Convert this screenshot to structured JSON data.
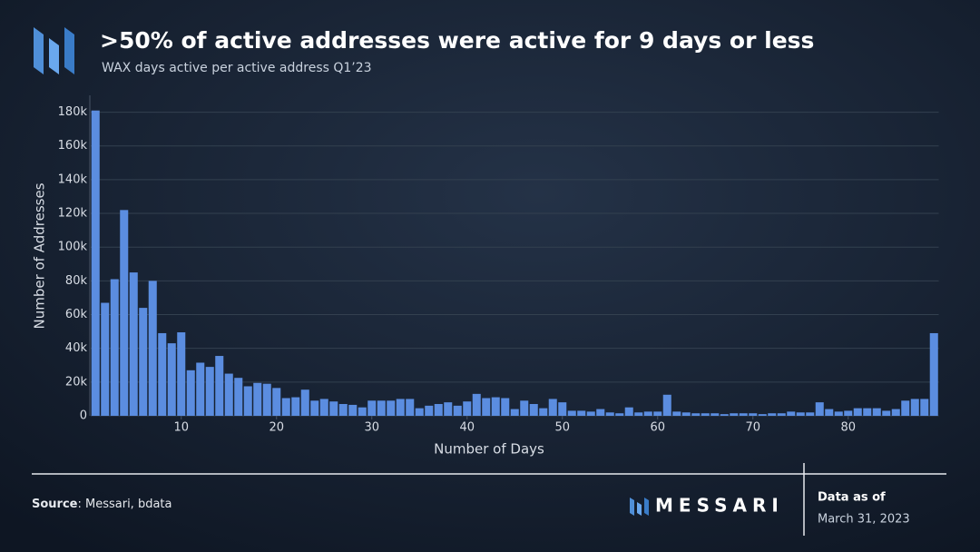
{
  "chart_data": {
    "type": "bar",
    "title": ">50% of active addresses were active for 9 days or less",
    "subtitle": "WAX days active per active address Q1’23",
    "x_label": "Number of Days",
    "y_label": "Number of Addresses",
    "color": "#5b8de0",
    "grid": true,
    "x": [
      1,
      2,
      3,
      4,
      5,
      6,
      7,
      8,
      9,
      10,
      11,
      12,
      13,
      14,
      15,
      16,
      17,
      18,
      19,
      20,
      21,
      22,
      23,
      24,
      25,
      26,
      27,
      28,
      29,
      30,
      31,
      32,
      33,
      34,
      35,
      36,
      37,
      38,
      39,
      40,
      41,
      42,
      43,
      44,
      45,
      46,
      47,
      48,
      49,
      50,
      51,
      52,
      53,
      54,
      55,
      56,
      57,
      58,
      59,
      60,
      61,
      62,
      63,
      64,
      65,
      66,
      67,
      68,
      69,
      70,
      71,
      72,
      73,
      74,
      75,
      76,
      77,
      78,
      79,
      80,
      81,
      82,
      83,
      84,
      85,
      86,
      87,
      88,
      89
    ],
    "values": [
      181000,
      67000,
      81000,
      122000,
      85000,
      64000,
      80000,
      49000,
      43000,
      49500,
      27000,
      31500,
      29000,
      35500,
      25000,
      22500,
      17500,
      19500,
      19000,
      16500,
      10500,
      11000,
      15500,
      9000,
      10000,
      8500,
      7000,
      6500,
      5000,
      9000,
      9000,
      9000,
      10000,
      10000,
      4500,
      6000,
      7000,
      8000,
      6000,
      8500,
      13000,
      10500,
      11000,
      10500,
      4000,
      9000,
      7000,
      4500,
      10000,
      8000,
      3000,
      3000,
      2500,
      4000,
      2000,
      1500,
      5000,
      2000,
      2500,
      2500,
      12500,
      2500,
      2000,
      1500,
      1500,
      1500,
      1000,
      1500,
      1500,
      1500,
      1000,
      1500,
      1500,
      2500,
      2000,
      2000,
      8000,
      4000,
      2500,
      3000,
      4500,
      4500,
      4500,
      3000,
      4000,
      9000,
      10000,
      10000,
      49000
    ],
    "xlim": [
      0.5,
      89.5
    ],
    "xticks": [
      10,
      20,
      30,
      40,
      50,
      60,
      70,
      80
    ],
    "ylim": [
      0,
      190000
    ],
    "yticks": [
      0,
      {
        "value": 20000,
        "label": "20k"
      },
      {
        "value": 40000,
        "label": "40k"
      },
      {
        "value": 60000,
        "label": "60k"
      },
      {
        "value": 80000,
        "label": "80k"
      },
      {
        "value": 100000,
        "label": "100k"
      },
      {
        "value": 120000,
        "label": "120k"
      },
      {
        "value": 140000,
        "label": "140k"
      },
      {
        "value": 160000,
        "label": "160k"
      },
      {
        "value": 180000,
        "label": "180k"
      }
    ]
  },
  "footer": {
    "source_label": "Source",
    "source_text": ": Messari, bdata",
    "brand": "MESSARI",
    "date_label": "Data as of",
    "date": "March 31, 2023"
  }
}
